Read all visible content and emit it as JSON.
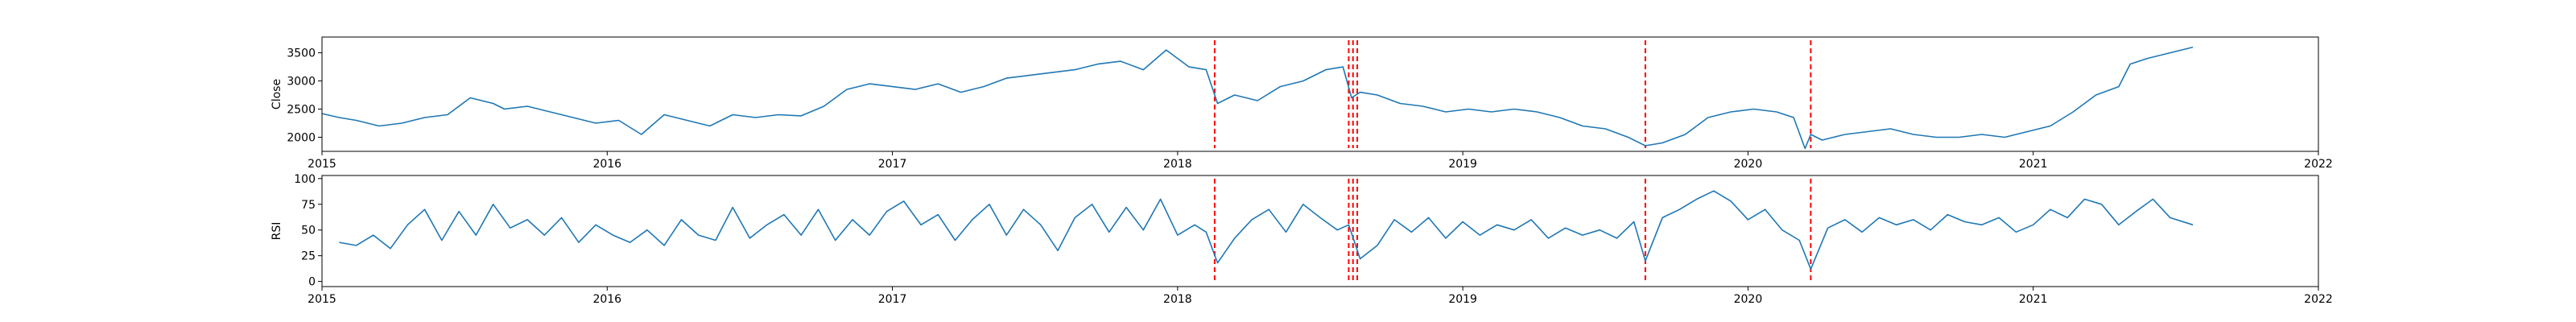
{
  "chart_data": [
    {
      "type": "line",
      "ylabel": "Close",
      "xlim": [
        2015.0,
        2022.0
      ],
      "ylim": [
        1750,
        3780
      ],
      "x_ticks": [
        2015,
        2016,
        2017,
        2018,
        2019,
        2020,
        2021,
        2022
      ],
      "x_tick_labels": [
        "2015",
        "2016",
        "2017",
        "2018",
        "2019",
        "2020",
        "2021",
        "2022"
      ],
      "y_ticks": [
        2000,
        2500,
        3000,
        3500
      ],
      "y_tick_labels": [
        "2000",
        "2500",
        "3000",
        "3500"
      ],
      "line_color": "#1f77b4",
      "series": [
        {
          "x": [
            2015.0,
            2015.06,
            2015.12,
            2015.2,
            2015.28,
            2015.36,
            2015.44,
            2015.52,
            2015.6,
            2015.64,
            2015.72,
            2015.8,
            2015.88,
            2015.96,
            2016.04,
            2016.12,
            2016.2,
            2016.28,
            2016.36,
            2016.44,
            2016.52,
            2016.6,
            2016.68,
            2016.76,
            2016.84,
            2016.92,
            2017.0,
            2017.08,
            2017.16,
            2017.24,
            2017.32,
            2017.4,
            2017.48,
            2017.56,
            2017.64,
            2017.72,
            2017.8,
            2017.88,
            2017.96,
            2018.04,
            2018.1,
            2018.14,
            2018.2,
            2018.28,
            2018.36,
            2018.44,
            2018.52,
            2018.58,
            2018.61,
            2018.64,
            2018.7,
            2018.78,
            2018.86,
            2018.94,
            2019.02,
            2019.1,
            2019.18,
            2019.26,
            2019.34,
            2019.42,
            2019.5,
            2019.58,
            2019.64,
            2019.7,
            2019.78,
            2019.86,
            2019.94,
            2020.02,
            2020.1,
            2020.16,
            2020.2,
            2020.22,
            2020.26,
            2020.34,
            2020.42,
            2020.5,
            2020.58,
            2020.66,
            2020.74,
            2020.82,
            2020.9,
            2020.98,
            2021.06,
            2021.14,
            2021.22,
            2021.3,
            2021.34,
            2021.4,
            2021.48,
            2021.56
          ],
          "values": [
            2420,
            2350,
            2300,
            2200,
            2250,
            2350,
            2400,
            2700,
            2600,
            2500,
            2550,
            2450,
            2350,
            2250,
            2300,
            2050,
            2400,
            2300,
            2200,
            2400,
            2350,
            2400,
            2380,
            2550,
            2850,
            2950,
            2900,
            2850,
            2950,
            2800,
            2900,
            3050,
            3100,
            3150,
            3200,
            3300,
            3350,
            3200,
            3550,
            3250,
            3200,
            2600,
            2750,
            2650,
            2900,
            3000,
            3200,
            3250,
            2700,
            2800,
            2750,
            2600,
            2550,
            2450,
            2500,
            2450,
            2500,
            2450,
            2350,
            2200,
            2150,
            2000,
            1850,
            1900,
            2050,
            2350,
            2450,
            2500,
            2450,
            2350,
            1800,
            2050,
            1950,
            2050,
            2100,
            2150,
            2050,
            2000,
            2000,
            2050,
            2000,
            2100,
            2200,
            2450,
            2750,
            2900,
            3300,
            3400,
            3500,
            3600
          ]
        }
      ],
      "markers": {
        "x": [
          2018.13,
          2018.6,
          2018.615,
          2018.63,
          2019.64,
          2020.22
        ],
        "color": "#ff0000",
        "style": "dashed"
      }
    },
    {
      "type": "line",
      "ylabel": "RSI",
      "xlim": [
        2015.0,
        2022.0
      ],
      "ylim": [
        -5,
        103
      ],
      "x_ticks": [
        2015,
        2016,
        2017,
        2018,
        2019,
        2020,
        2021,
        2022
      ],
      "x_tick_labels": [
        "2015",
        "2016",
        "2017",
        "2018",
        "2019",
        "2020",
        "2021",
        "2022"
      ],
      "y_ticks": [
        0,
        25,
        50,
        75,
        100
      ],
      "y_tick_labels": [
        "0",
        "25",
        "50",
        "75",
        "100"
      ],
      "line_color": "#1f77b4",
      "series": [
        {
          "x": [
            2015.06,
            2015.12,
            2015.18,
            2015.24,
            2015.3,
            2015.36,
            2015.42,
            2015.48,
            2015.54,
            2015.6,
            2015.66,
            2015.72,
            2015.78,
            2015.84,
            2015.9,
            2015.96,
            2016.02,
            2016.08,
            2016.14,
            2016.2,
            2016.26,
            2016.32,
            2016.38,
            2016.44,
            2016.5,
            2016.56,
            2016.62,
            2016.68,
            2016.74,
            2016.8,
            2016.86,
            2016.92,
            2016.98,
            2017.04,
            2017.1,
            2017.16,
            2017.22,
            2017.28,
            2017.34,
            2017.4,
            2017.46,
            2017.52,
            2017.58,
            2017.64,
            2017.7,
            2017.76,
            2017.82,
            2017.88,
            2017.94,
            2018.0,
            2018.06,
            2018.1,
            2018.14,
            2018.2,
            2018.26,
            2018.32,
            2018.38,
            2018.44,
            2018.5,
            2018.56,
            2018.6,
            2018.64,
            2018.7,
            2018.76,
            2018.82,
            2018.88,
            2018.94,
            2019.0,
            2019.06,
            2019.12,
            2019.18,
            2019.24,
            2019.3,
            2019.36,
            2019.42,
            2019.48,
            2019.54,
            2019.6,
            2019.64,
            2019.7,
            2019.76,
            2019.82,
            2019.88,
            2019.94,
            2020.0,
            2020.06,
            2020.12,
            2020.18,
            2020.22,
            2020.28,
            2020.34,
            2020.4,
            2020.46,
            2020.52,
            2020.58,
            2020.64,
            2020.7,
            2020.76,
            2020.82,
            2020.88,
            2020.94,
            2021.0,
            2021.06,
            2021.12,
            2021.18,
            2021.24,
            2021.3,
            2021.36,
            2021.42,
            2021.48,
            2021.56
          ],
          "values": [
            38,
            35,
            45,
            32,
            55,
            70,
            40,
            68,
            45,
            75,
            52,
            60,
            45,
            62,
            38,
            55,
            45,
            38,
            50,
            35,
            60,
            45,
            40,
            72,
            42,
            55,
            65,
            45,
            70,
            40,
            60,
            45,
            68,
            78,
            55,
            65,
            40,
            60,
            75,
            45,
            70,
            55,
            30,
            62,
            75,
            48,
            72,
            50,
            80,
            45,
            55,
            48,
            18,
            42,
            60,
            70,
            48,
            75,
            62,
            50,
            55,
            22,
            35,
            60,
            48,
            62,
            42,
            58,
            45,
            55,
            50,
            60,
            42,
            52,
            45,
            50,
            42,
            58,
            20,
            62,
            70,
            80,
            88,
            78,
            60,
            70,
            50,
            40,
            12,
            52,
            60,
            48,
            62,
            55,
            60,
            50,
            65,
            58,
            55,
            62,
            48,
            55,
            70,
            62,
            80,
            75,
            55,
            68,
            80,
            62,
            55
          ]
        }
      ],
      "markers": {
        "x": [
          2018.13,
          2018.6,
          2018.615,
          2018.63,
          2019.64,
          2020.22
        ],
        "color": "#ff0000",
        "style": "dashed"
      }
    }
  ]
}
